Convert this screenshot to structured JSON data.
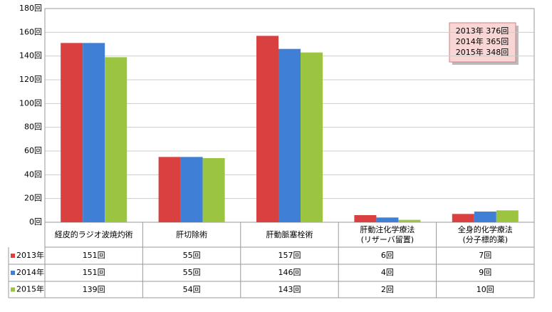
{
  "chart_data": {
    "type": "bar",
    "categories": [
      "経皮的ラジオ波焼灼術",
      "肝切除術",
      "肝動脈塞栓術",
      "肝動注化学療法\n(リザーバ留置)",
      "全身的化学療法\n(分子標的薬)"
    ],
    "series": [
      {
        "name": "2013年",
        "color": "#d94040",
        "values": [
          151,
          55,
          157,
          6,
          7
        ],
        "value_labels": [
          "151回",
          "55回",
          "157回",
          "6回",
          "7回"
        ]
      },
      {
        "name": "2014年",
        "color": "#3f7fd6",
        "values": [
          151,
          55,
          146,
          4,
          9
        ],
        "value_labels": [
          "151回",
          "55回",
          "146回",
          "4回",
          "9回"
        ]
      },
      {
        "name": "2015年",
        "color": "#9bc440",
        "values": [
          139,
          54,
          143,
          2,
          10
        ],
        "value_labels": [
          "139回",
          "54回",
          "143回",
          "2回",
          "10回"
        ]
      }
    ],
    "ylim": [
      0,
      180
    ],
    "yticks": [
      {
        "value": 0,
        "label": "0回"
      },
      {
        "value": 20,
        "label": "20回"
      },
      {
        "value": 40,
        "label": "40回"
      },
      {
        "value": 60,
        "label": "60回"
      },
      {
        "value": 80,
        "label": "80回"
      },
      {
        "value": 100,
        "label": "100回"
      },
      {
        "value": 120,
        "label": "120回"
      },
      {
        "value": 140,
        "label": "140回"
      },
      {
        "value": 160,
        "label": "160回"
      },
      {
        "value": 180,
        "label": "180回"
      }
    ],
    "grid": true,
    "annotation": [
      "2013年 376回",
      "2014年 365回",
      "2015年 348回"
    ]
  }
}
